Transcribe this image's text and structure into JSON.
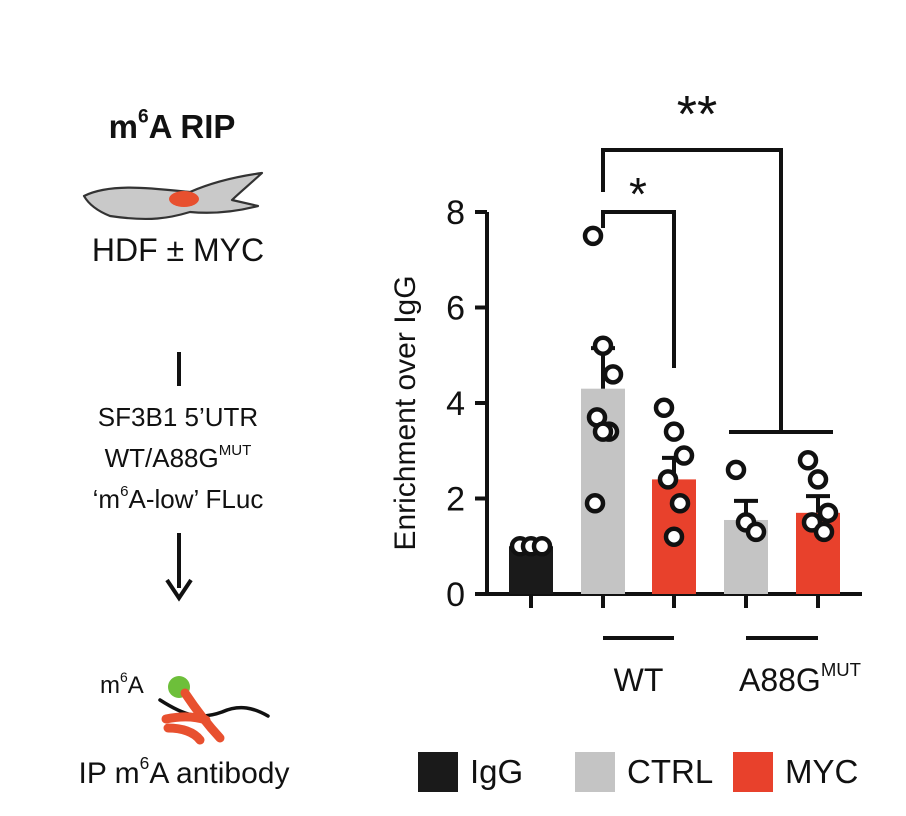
{
  "schematic": {
    "title_main": "m",
    "title_sup": "6",
    "title_rest": "A RIP",
    "cell_label": "HDF ± MYC",
    "construct_line1": "SF3B1 5’UTR",
    "construct_line2_main": "WT/A88G",
    "construct_line2_sup": "MUT",
    "construct_line3_pre": "‘m",
    "construct_line3_sup": "6",
    "construct_line3_post": "A-low’ FLuc",
    "m6a_main": "m",
    "m6a_sup": "6",
    "m6a_post": "A",
    "ip_pre": "IP m",
    "ip_sup": "6",
    "ip_post": "A antibody",
    "colors": {
      "cell": "#c9c9c9",
      "nucleus": "#e8502f",
      "m6a_dot": "#6dbf3a",
      "antibody": "#e8502f"
    }
  },
  "chart_data": {
    "type": "bar",
    "ylabel": "Enrichment over IgG",
    "ylim": [
      0,
      8
    ],
    "yticks": [
      0,
      2,
      4,
      6,
      8
    ],
    "series": [
      {
        "name": "IgG",
        "color": "#1a1a1a"
      },
      {
        "name": "CTRL",
        "color": "#c4c4c4"
      },
      {
        "name": "MYC",
        "color": "#e8412c"
      }
    ],
    "bars": [
      {
        "series": "IgG",
        "group": "",
        "value": 1.0,
        "error": 0.0,
        "points": [
          1.0,
          1.0,
          1.0
        ]
      },
      {
        "series": "CTRL",
        "group": "WT",
        "value": 4.3,
        "error": 0.85,
        "points": [
          7.5,
          5.2,
          4.6,
          3.7,
          3.4,
          3.4,
          1.9
        ]
      },
      {
        "series": "MYC",
        "group": "WT",
        "value": 2.4,
        "error": 0.45,
        "points": [
          3.9,
          3.4,
          2.9,
          2.4,
          1.9,
          1.2
        ]
      },
      {
        "series": "CTRL",
        "group": "A88G",
        "value": 1.55,
        "error": 0.4,
        "points": [
          2.6,
          1.5,
          1.3
        ]
      },
      {
        "series": "MYC",
        "group": "A88G",
        "value": 1.7,
        "error": 0.35,
        "points": [
          2.8,
          2.4,
          1.7,
          1.5,
          1.3
        ]
      }
    ],
    "groups": [
      {
        "label_main": "WT",
        "label_sup": ""
      },
      {
        "label_main": "A88G",
        "label_sup": "MUT"
      }
    ],
    "significance": [
      {
        "label": "*"
      },
      {
        "label": "**"
      }
    ],
    "legend": [
      "IgG",
      "CTRL",
      "MYC"
    ]
  }
}
